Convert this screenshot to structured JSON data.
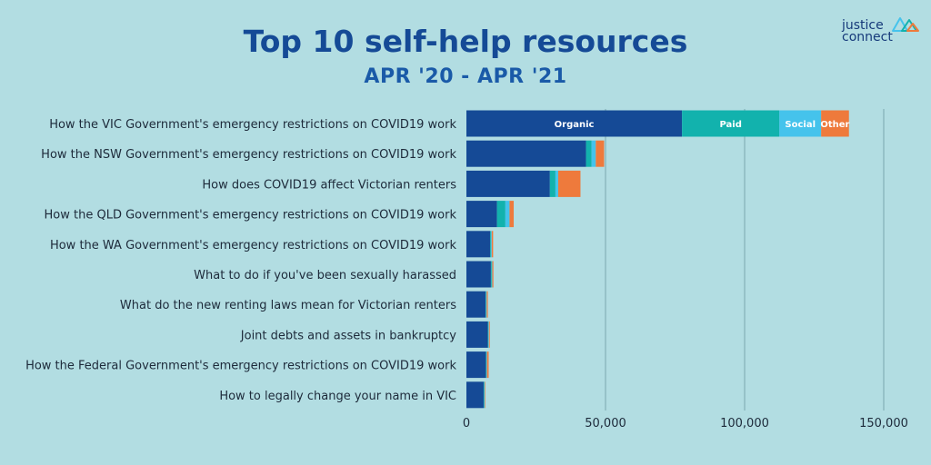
{
  "header": {
    "title": "Top 10 self-help resources",
    "subtitle": "APR '20 - APR '21"
  },
  "logo": {
    "line1": "justice",
    "line2": "connect"
  },
  "colors": {
    "background": "#b2dde2",
    "Organic": "#154a96",
    "Paid": "#12b2ad",
    "Social": "#45c3ec",
    "Other": "#ee7a3c",
    "gridline": "#7aa6ad",
    "label": "#1d2a3a"
  },
  "chart_data": {
    "type": "bar",
    "orientation": "horizontal",
    "stacked": true,
    "title": "Top 10 self-help resources",
    "subtitle": "APR '20 - APR '21",
    "categories": [
      "How the VIC Government's emergency restrictions on COVID19 work",
      "How the NSW Government's emergency restrictions on COVID19 work",
      "How does COVID19 affect Victorian renters",
      "How the QLD Government's emergency restrictions on COVID19 work",
      "How the WA Government's emergency restrictions on COVID19 work",
      "What to do if you've been sexually harassed",
      "What do the new renting laws mean for Victorian renters",
      "Joint debts and assets in bankruptcy",
      "How the Federal Government's emergency restrictions on COVID19 work",
      "How to legally change your name in VIC"
    ],
    "series": [
      {
        "name": "Organic",
        "values": [
          77500,
          43000,
          30000,
          11000,
          8500,
          8800,
          6900,
          7700,
          7000,
          6200
        ]
      },
      {
        "name": "Paid",
        "values": [
          35000,
          2000,
          2000,
          3000,
          300,
          300,
          200,
          200,
          200,
          200
        ]
      },
      {
        "name": "Social",
        "values": [
          15000,
          1500,
          1000,
          1500,
          300,
          200,
          200,
          200,
          200,
          200
        ]
      },
      {
        "name": "Other",
        "values": [
          10000,
          3000,
          8000,
          1500,
          500,
          400,
          400,
          300,
          600,
          200
        ]
      }
    ],
    "in_bar_series_labels": [
      "Organic",
      "Paid",
      "Social",
      "Other"
    ],
    "xlim": [
      0,
      150000
    ],
    "xticks": [
      0,
      50000,
      100000,
      150000
    ],
    "xtick_labels": [
      "0",
      "50,000",
      "100,000",
      "150,000"
    ],
    "xlabel": "",
    "ylabel": "",
    "grid": "vertical",
    "legend": "labels inside first bar"
  }
}
